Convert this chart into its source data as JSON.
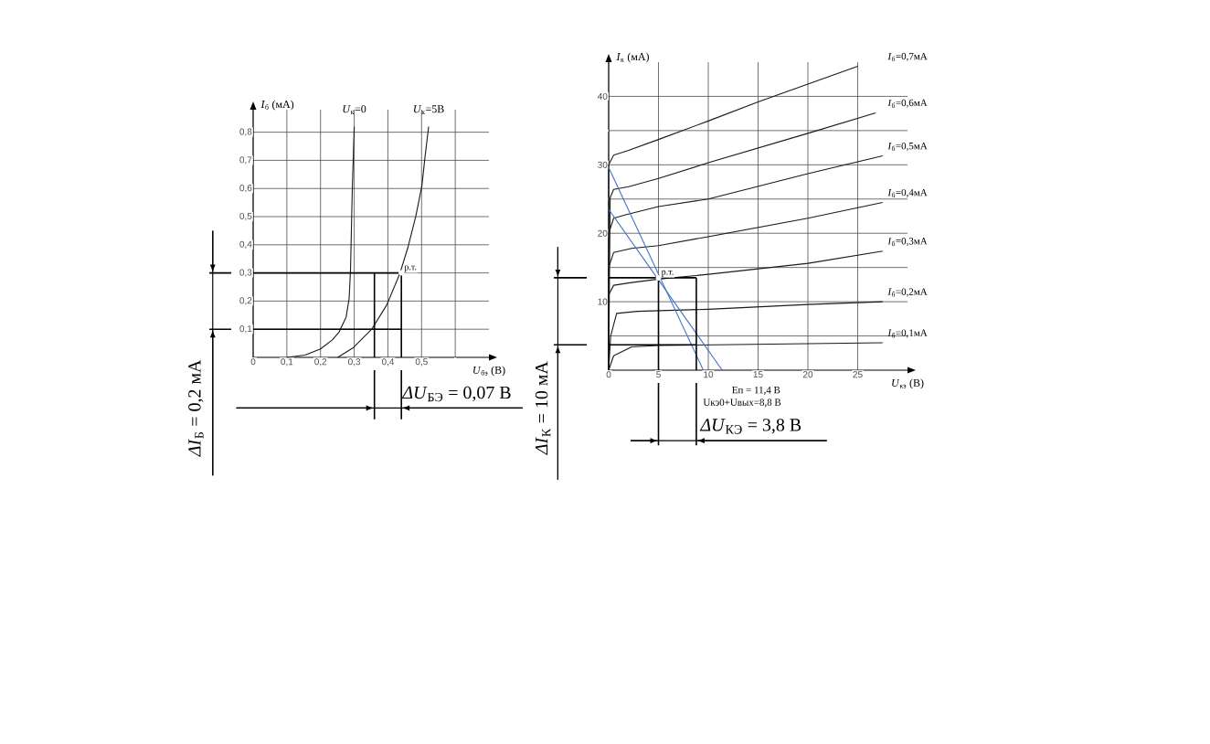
{
  "chart_data": [
    {
      "type": "line",
      "xlabel": "*U*$_{бэ}$ (В)",
      "ylabel": "*I*$_{б}$ (мА)",
      "xlim": [
        0,
        0.7
      ],
      "ylim": [
        0,
        0.88
      ],
      "xticks": [
        0,
        {
          "value": 0.1,
          "label": "0,1"
        },
        {
          "value": 0.2,
          "label": "0,2"
        },
        {
          "value": 0.3,
          "label": "0,3"
        },
        {
          "value": 0.4,
          "label": "0,4"
        },
        {
          "value": 0.5,
          "label": "0,5"
        },
        {
          "value": 0.6,
          "label": null
        }
      ],
      "yticks": [
        {
          "value": 0.1,
          "label": "0,1"
        },
        {
          "value": 0.2,
          "label": "0,2"
        },
        {
          "value": 0.3,
          "label": "0,3"
        },
        {
          "value": 0.4,
          "label": "0,4"
        },
        {
          "value": 0.5,
          "label": "0,5"
        },
        {
          "value": 0.6,
          "label": "0,6"
        },
        {
          "value": 0.7,
          "label": "0,7"
        },
        {
          "value": 0.8,
          "label": "0,8"
        }
      ],
      "grid": true,
      "marker": "none",
      "line_style": "solid",
      "series": [
        {
          "name": "*U*$_{к}$=0",
          "color": "#1a1a1a",
          "x": [
            0.1,
            0.154,
            0.2,
            0.235,
            0.255,
            0.276,
            0.285,
            0.289,
            0.294,
            0.3
          ],
          "values": [
            0,
            0.008,
            0.03,
            0.062,
            0.09,
            0.143,
            0.21,
            0.31,
            0.58,
            0.82
          ]
        },
        {
          "name": "*U*$_{к}$=5В",
          "color": "#1a1a1a",
          "x": [
            0.251,
            0.298,
            0.352,
            0.397,
            0.435,
            0.46,
            0.483,
            0.501,
            0.51,
            0.521
          ],
          "values": [
            0,
            0.035,
            0.1,
            0.187,
            0.296,
            0.393,
            0.502,
            0.61,
            0.71,
            0.82
          ]
        }
      ],
      "ref_lines": [
        {
          "axis": "y",
          "value": 0.1,
          "color": "#000000"
        },
        {
          "axis": "y",
          "value": 0.3,
          "color": "#000000"
        },
        {
          "axis": "x",
          "value": 0.36,
          "color": "#000000"
        },
        {
          "axis": "x",
          "value": 0.44,
          "color": "#000000"
        }
      ],
      "annotations": [
        {
          "text": "р.т.",
          "x": 0.44,
          "y": 0.3
        },
        "*ΔI*$_{Б}$ = 0,2  мА",
        "*ΔU*$_{БЭ}$ = 0,07 В"
      ]
    },
    {
      "type": "line",
      "xlabel": "*U*$_{кэ}$ (В)",
      "ylabel": "*I*$_{к}$ (мА)",
      "xlim": [
        0,
        30
      ],
      "ylim": [
        0,
        45
      ],
      "xticks": [
        0,
        5,
        10,
        15,
        20,
        25
      ],
      "yticks": [
        {
          "value": 5,
          "label": null
        },
        10,
        {
          "value": 15,
          "label": null
        },
        20,
        {
          "value": 25,
          "label": null
        },
        30,
        {
          "value": 35,
          "label": null
        },
        40
      ],
      "grid": true,
      "marker": "none",
      "line_style": "solid",
      "series": [
        {
          "name": "*I*$_{б}$=0,7мА",
          "color": "#1a1a1a",
          "x": [
            0,
            0,
            0.5,
            2,
            5,
            10,
            15,
            20,
            25
          ],
          "values": [
            0,
            30,
            31.4,
            32.1,
            33.7,
            36.4,
            39.2,
            41.8,
            44.4
          ]
        },
        {
          "name": "*I*$_{б}$=0,6мА",
          "color": "#1a1a1a",
          "x": [
            0,
            0.15,
            0.5,
            2,
            5,
            10,
            20,
            26.8
          ],
          "values": [
            0,
            25.2,
            26.4,
            26.8,
            28,
            30.3,
            34.6,
            37.6
          ]
        },
        {
          "name": "*I*$_{б}$=0,5мА",
          "color": "#1a1a1a",
          "x": [
            0,
            0,
            0.5,
            1.7,
            5,
            10,
            20,
            27.5
          ],
          "values": [
            0,
            20,
            22.2,
            22.7,
            23.9,
            25,
            28.7,
            31.3
          ]
        },
        {
          "name": "*I*$_{б}$=0,4мА",
          "color": "#1a1a1a",
          "x": [
            0,
            0,
            0.5,
            2.3,
            5,
            10,
            20,
            27.5
          ],
          "values": [
            0,
            15,
            17.2,
            17.8,
            18.2,
            19.5,
            22.2,
            24.5
          ]
        },
        {
          "name": "*I*$_{б}$=0,3мА",
          "color": "#1a1a1a",
          "x": [
            0,
            0,
            0.5,
            2.3,
            5,
            10,
            20,
            27.5
          ],
          "values": [
            0,
            11,
            12.4,
            12.8,
            13.3,
            14,
            15.6,
            17.4
          ]
        },
        {
          "name": "*I*$_{б}$=0,2мА",
          "color": "#1a1a1a",
          "x": [
            0,
            0.2,
            0.8,
            2.9,
            10,
            20,
            27.5
          ],
          "values": [
            0,
            5,
            8.3,
            8.6,
            8.9,
            9.6,
            10
          ]
        },
        {
          "name": "*I*$_{б}$=0,1мА",
          "color": "#1a1a1a",
          "x": [
            0,
            0.5,
            2.3,
            5,
            27.5
          ],
          "values": [
            0,
            2.1,
            3.4,
            3.6,
            4
          ]
        },
        {
          "color": "#3f72c6",
          "x": [
            0,
            9.5
          ],
          "values": [
            29.6,
            0
          ]
        },
        {
          "color": "#3f72c6",
          "x": [
            0,
            11.4
          ],
          "values": [
            23.5,
            0
          ]
        }
      ],
      "ref_lines": [
        {
          "axis": "y",
          "value": 3.7,
          "color": "#000000"
        },
        {
          "axis": "y",
          "value": 13.5,
          "color": "#000000"
        },
        {
          "axis": "x",
          "value": 5,
          "color": "#000000"
        },
        {
          "axis": "x",
          "value": 8.8,
          "color": "#000000"
        }
      ],
      "annotations": [
        {
          "text": "р.т.",
          "x": 5,
          "y": 13.5
        },
        "*ΔI*$_{К}$ = 10 мА",
        "Eп = 11,4 В",
        "Uкэ0+Uвых=8,8 В",
        "*ΔU*$_{КЭ}$ = 3,8 В"
      ]
    }
  ]
}
